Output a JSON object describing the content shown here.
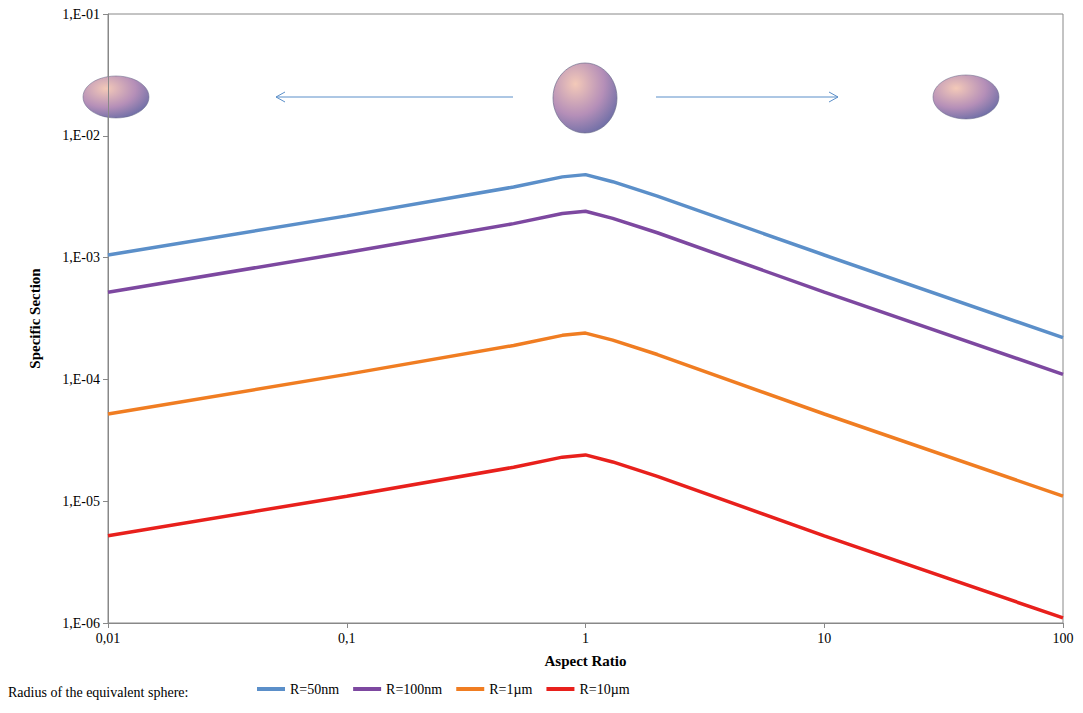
{
  "chart_data": {
    "type": "line",
    "x_label": "Aspect Ratio",
    "y_label": "Specific Section",
    "legend_title": "Radius of the equivalent sphere:",
    "log": true,
    "grid": false,
    "legend": "bottom",
    "x": [
      0.01,
      0.1,
      0.5,
      0.8,
      1,
      1.3,
      2,
      10,
      100
    ],
    "xlim": [
      0.01,
      100
    ],
    "xticks": [
      {
        "value": 0.01,
        "label": "0,01"
      },
      {
        "value": 0.1,
        "label": "0,1"
      },
      1,
      10,
      100
    ],
    "ylim": [
      1e-06,
      0.1
    ],
    "yticks": [
      {
        "value": 1e-06,
        "label": "1,E-06"
      },
      {
        "value": 1e-05,
        "label": "1,E-05"
      },
      {
        "value": 0.0001,
        "label": "1,E-04"
      },
      {
        "value": 0.001,
        "label": "1,E-03"
      },
      {
        "value": 0.01,
        "label": "1,E-02"
      },
      {
        "value": 0.1,
        "label": "1,E-01"
      }
    ],
    "series": [
      {
        "name": "R=50nm",
        "color": "#5b8fc9",
        "values": [
          0.00105,
          0.0022,
          0.0038,
          0.0046,
          0.0048,
          0.0042,
          0.0032,
          0.00105,
          0.00022
        ]
      },
      {
        "name": "R=100nm",
        "color": "#7d48a0",
        "values": [
          0.00052,
          0.0011,
          0.0019,
          0.0023,
          0.0024,
          0.0021,
          0.0016,
          0.00052,
          0.00011
        ]
      },
      {
        "name": "R=1µm",
        "color": "#f07d22",
        "values": [
          5.2e-05,
          0.00011,
          0.00019,
          0.00023,
          0.00024,
          0.00021,
          0.00016,
          5.2e-05,
          1.1e-05
        ]
      },
      {
        "name": "R=10µm",
        "color": "#e8201c",
        "values": [
          5.2e-06,
          1.1e-05,
          1.9e-05,
          2.3e-05,
          2.4e-05,
          2.1e-05,
          1.6e-05,
          5.2e-06,
          1.1e-06
        ]
      }
    ]
  }
}
